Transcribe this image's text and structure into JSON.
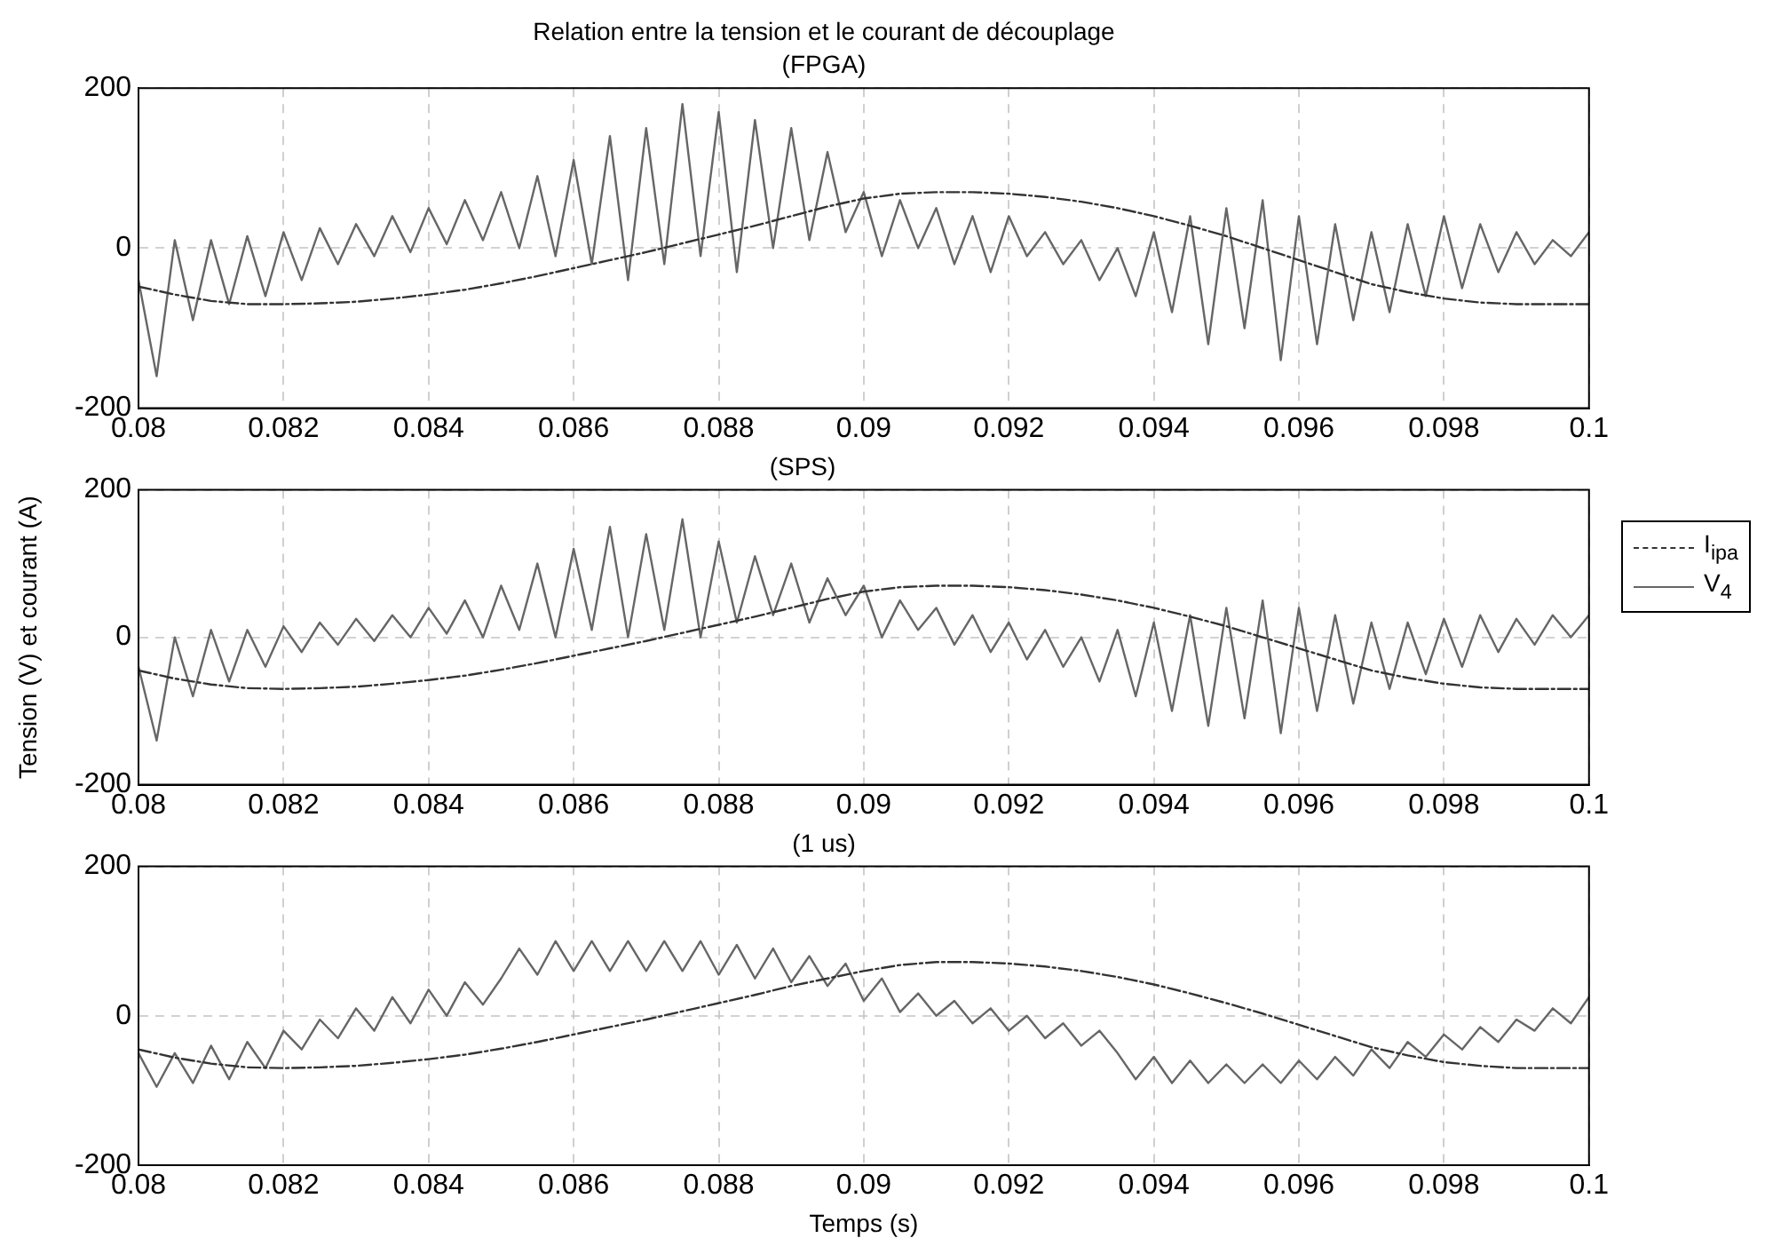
{
  "chart_data": [
    {
      "type": "line",
      "title": "Relation entre la tension et le courant de découplage",
      "subtitle": "(FPGA)",
      "xlim": [
        0.08,
        0.1
      ],
      "xticks": [
        0.08,
        0.082,
        0.084,
        0.086,
        0.088,
        0.09,
        0.092,
        0.094,
        0.096,
        0.098,
        0.1
      ],
      "ylim": [
        -200,
        200
      ],
      "yticks": [
        -200,
        0,
        200
      ],
      "grid": true,
      "marker": "none",
      "series": [
        {
          "color": "#333333",
          "line_style": "dashed",
          "x": [
            0.08,
            0.0805,
            0.081,
            0.0815,
            0.082,
            0.0825,
            0.083,
            0.0835,
            0.084,
            0.0845,
            0.085,
            0.0855,
            0.086,
            0.0865,
            0.087,
            0.0875,
            0.088,
            0.0885,
            0.089,
            0.0895,
            0.09,
            0.0905,
            0.091,
            0.0915,
            0.092,
            0.0925,
            0.093,
            0.0935,
            0.094,
            0.0945,
            0.095,
            0.0955,
            0.096,
            0.0965,
            0.097,
            0.0975,
            0.098,
            0.0985,
            0.099,
            0.0995,
            0.1
          ],
          "values": [
            -48,
            -58,
            -66,
            -70,
            -70,
            -69,
            -67,
            -63,
            -58,
            -52,
            -44,
            -35,
            -25,
            -15,
            -5,
            6,
            17,
            28,
            40,
            52,
            62,
            68,
            70,
            70,
            68,
            64,
            58,
            50,
            40,
            28,
            15,
            0,
            -15,
            -30,
            -45,
            -55,
            -63,
            -68,
            -70,
            -70,
            -70
          ]
        },
        {
          "color": "#666666",
          "line_style": "solid",
          "x": [
            0.08,
            0.08025,
            0.0805,
            0.08075,
            0.081,
            0.08125,
            0.0815,
            0.08175,
            0.082,
            0.08225,
            0.0825,
            0.08275,
            0.083,
            0.08325,
            0.0835,
            0.08375,
            0.084,
            0.08425,
            0.0845,
            0.08475,
            0.085,
            0.08525,
            0.0855,
            0.08575,
            0.086,
            0.08625,
            0.0865,
            0.08675,
            0.087,
            0.08725,
            0.0875,
            0.08775,
            0.088,
            0.08825,
            0.0885,
            0.08875,
            0.089,
            0.08925,
            0.0895,
            0.08975,
            0.09,
            0.09025,
            0.0905,
            0.09075,
            0.091,
            0.09125,
            0.0915,
            0.09175,
            0.092,
            0.09225,
            0.0925,
            0.09275,
            0.093,
            0.09325,
            0.0935,
            0.09375,
            0.094,
            0.09425,
            0.0945,
            0.09475,
            0.095,
            0.09525,
            0.0955,
            0.09575,
            0.096,
            0.09625,
            0.0965,
            0.09675,
            0.097,
            0.09725,
            0.0975,
            0.09775,
            0.098,
            0.09825,
            0.0985,
            0.09875,
            0.099,
            0.09925,
            0.0995,
            0.09975,
            0.1
          ],
          "values": [
            -40,
            -160,
            10,
            -90,
            10,
            -70,
            15,
            -60,
            20,
            -40,
            25,
            -20,
            30,
            -10,
            40,
            -5,
            50,
            5,
            60,
            10,
            70,
            0,
            90,
            -10,
            110,
            -20,
            140,
            -40,
            150,
            -20,
            180,
            -10,
            170,
            -30,
            160,
            0,
            150,
            10,
            120,
            20,
            70,
            -10,
            60,
            0,
            50,
            -20,
            40,
            -30,
            40,
            -10,
            20,
            -20,
            10,
            -40,
            0,
            -60,
            20,
            -80,
            40,
            -120,
            50,
            -100,
            60,
            -140,
            40,
            -120,
            30,
            -90,
            20,
            -80,
            30,
            -60,
            40,
            -50,
            30,
            -30,
            20,
            -20,
            10,
            -10,
            20
          ]
        }
      ]
    },
    {
      "type": "line",
      "title": "(SPS)",
      "ylabel": "Tension (V) et courant (A)",
      "xlim": [
        0.08,
        0.1
      ],
      "xticks": [
        0.08,
        0.082,
        0.084,
        0.086,
        0.088,
        0.09,
        0.092,
        0.094,
        0.096,
        0.098,
        0.1
      ],
      "ylim": [
        -200,
        200
      ],
      "yticks": [
        -200,
        0,
        200
      ],
      "grid": true,
      "marker": "none",
      "legend": "right",
      "series": [
        {
          "name": "I$_{ipa}$",
          "color": "#333333",
          "line_style": "dashed",
          "x": [
            0.08,
            0.0805,
            0.081,
            0.0815,
            0.082,
            0.0825,
            0.083,
            0.0835,
            0.084,
            0.0845,
            0.085,
            0.0855,
            0.086,
            0.0865,
            0.087,
            0.0875,
            0.088,
            0.0885,
            0.089,
            0.0895,
            0.09,
            0.0905,
            0.091,
            0.0915,
            0.092,
            0.0925,
            0.093,
            0.0935,
            0.094,
            0.0945,
            0.095,
            0.0955,
            0.096,
            0.0965,
            0.097,
            0.0975,
            0.098,
            0.0985,
            0.099,
            0.0995,
            0.1
          ],
          "values": [
            -45,
            -56,
            -64,
            -69,
            -70,
            -69,
            -67,
            -63,
            -58,
            -52,
            -44,
            -35,
            -25,
            -15,
            -5,
            6,
            17,
            28,
            40,
            52,
            62,
            68,
            70,
            70,
            68,
            64,
            58,
            50,
            40,
            28,
            15,
            0,
            -15,
            -30,
            -45,
            -55,
            -63,
            -68,
            -70,
            -70,
            -70
          ]
        },
        {
          "name": "V$_{4}$",
          "color": "#666666",
          "line_style": "solid",
          "x": [
            0.08,
            0.08025,
            0.0805,
            0.08075,
            0.081,
            0.08125,
            0.0815,
            0.08175,
            0.082,
            0.08225,
            0.0825,
            0.08275,
            0.083,
            0.08325,
            0.0835,
            0.08375,
            0.084,
            0.08425,
            0.0845,
            0.08475,
            0.085,
            0.08525,
            0.0855,
            0.08575,
            0.086,
            0.08625,
            0.0865,
            0.08675,
            0.087,
            0.08725,
            0.0875,
            0.08775,
            0.088,
            0.08825,
            0.0885,
            0.08875,
            0.089,
            0.08925,
            0.0895,
            0.08975,
            0.09,
            0.09025,
            0.0905,
            0.09075,
            0.091,
            0.09125,
            0.0915,
            0.09175,
            0.092,
            0.09225,
            0.0925,
            0.09275,
            0.093,
            0.09325,
            0.0935,
            0.09375,
            0.094,
            0.09425,
            0.0945,
            0.09475,
            0.095,
            0.09525,
            0.0955,
            0.09575,
            0.096,
            0.09625,
            0.0965,
            0.09675,
            0.097,
            0.09725,
            0.0975,
            0.09775,
            0.098,
            0.09825,
            0.0985,
            0.09875,
            0.099,
            0.09925,
            0.0995,
            0.09975,
            0.1
          ],
          "values": [
            -40,
            -140,
            0,
            -80,
            10,
            -60,
            10,
            -40,
            15,
            -20,
            20,
            -10,
            25,
            -5,
            30,
            0,
            40,
            5,
            50,
            0,
            70,
            10,
            100,
            0,
            120,
            10,
            150,
            0,
            140,
            10,
            160,
            0,
            130,
            20,
            110,
            30,
            100,
            20,
            80,
            30,
            70,
            0,
            50,
            10,
            40,
            -10,
            30,
            -20,
            20,
            -30,
            10,
            -40,
            0,
            -60,
            10,
            -80,
            20,
            -100,
            30,
            -120,
            40,
            -110,
            50,
            -130,
            40,
            -100,
            30,
            -90,
            20,
            -70,
            20,
            -50,
            25,
            -40,
            30,
            -20,
            25,
            -10,
            30,
            0,
            30
          ]
        }
      ]
    },
    {
      "type": "line",
      "title": "(1 us)",
      "xlabel": "Temps (s)",
      "xlim": [
        0.08,
        0.1
      ],
      "xticks": [
        0.08,
        0.082,
        0.084,
        0.086,
        0.088,
        0.09,
        0.092,
        0.094,
        0.096,
        0.098,
        0.1
      ],
      "ylim": [
        -200,
        200
      ],
      "yticks": [
        -200,
        0,
        200
      ],
      "grid": true,
      "marker": "none",
      "series": [
        {
          "color": "#333333",
          "line_style": "dashed",
          "x": [
            0.08,
            0.0805,
            0.081,
            0.0815,
            0.082,
            0.0825,
            0.083,
            0.0835,
            0.084,
            0.0845,
            0.085,
            0.0855,
            0.086,
            0.0865,
            0.087,
            0.0875,
            0.088,
            0.0885,
            0.089,
            0.0895,
            0.09,
            0.0905,
            0.091,
            0.0915,
            0.092,
            0.0925,
            0.093,
            0.0935,
            0.094,
            0.0945,
            0.095,
            0.0955,
            0.096,
            0.0965,
            0.097,
            0.0975,
            0.098,
            0.0985,
            0.099,
            0.0995,
            0.1
          ],
          "values": [
            -45,
            -56,
            -64,
            -69,
            -70,
            -69,
            -67,
            -63,
            -58,
            -52,
            -44,
            -35,
            -25,
            -15,
            -5,
            6,
            17,
            28,
            40,
            50,
            60,
            68,
            72,
            72,
            70,
            66,
            60,
            52,
            42,
            30,
            17,
            3,
            -12,
            -27,
            -42,
            -53,
            -62,
            -67,
            -70,
            -70,
            -70
          ]
        },
        {
          "color": "#666666",
          "line_style": "solid",
          "x": [
            0.08,
            0.08025,
            0.0805,
            0.08075,
            0.081,
            0.08125,
            0.0815,
            0.08175,
            0.082,
            0.08225,
            0.0825,
            0.08275,
            0.083,
            0.08325,
            0.0835,
            0.08375,
            0.084,
            0.08425,
            0.0845,
            0.08475,
            0.085,
            0.08525,
            0.0855,
            0.08575,
            0.086,
            0.08625,
            0.0865,
            0.08675,
            0.087,
            0.08725,
            0.0875,
            0.08775,
            0.088,
            0.08825,
            0.0885,
            0.08875,
            0.089,
            0.08925,
            0.0895,
            0.08975,
            0.09,
            0.09025,
            0.0905,
            0.09075,
            0.091,
            0.09125,
            0.0915,
            0.09175,
            0.092,
            0.09225,
            0.0925,
            0.09275,
            0.093,
            0.09325,
            0.0935,
            0.09375,
            0.094,
            0.09425,
            0.0945,
            0.09475,
            0.095,
            0.09525,
            0.0955,
            0.09575,
            0.096,
            0.09625,
            0.0965,
            0.09675,
            0.097,
            0.09725,
            0.0975,
            0.09775,
            0.098,
            0.09825,
            0.0985,
            0.09875,
            0.099,
            0.09925,
            0.0995,
            0.09975,
            0.1
          ],
          "values": [
            -50,
            -95,
            -50,
            -90,
            -40,
            -85,
            -35,
            -70,
            -20,
            -45,
            -5,
            -30,
            10,
            -20,
            25,
            -10,
            35,
            0,
            45,
            15,
            50,
            90,
            55,
            100,
            60,
            100,
            60,
            100,
            60,
            100,
            60,
            100,
            55,
            95,
            50,
            90,
            45,
            80,
            40,
            70,
            20,
            50,
            5,
            30,
            0,
            20,
            -10,
            10,
            -20,
            0,
            -30,
            -10,
            -40,
            -20,
            -50,
            -85,
            -55,
            -90,
            -60,
            -90,
            -65,
            -90,
            -65,
            -90,
            -60,
            -85,
            -55,
            -80,
            -45,
            -70,
            -35,
            -55,
            -25,
            -45,
            -15,
            -35,
            -5,
            -20,
            10,
            -10,
            25
          ]
        }
      ]
    }
  ]
}
